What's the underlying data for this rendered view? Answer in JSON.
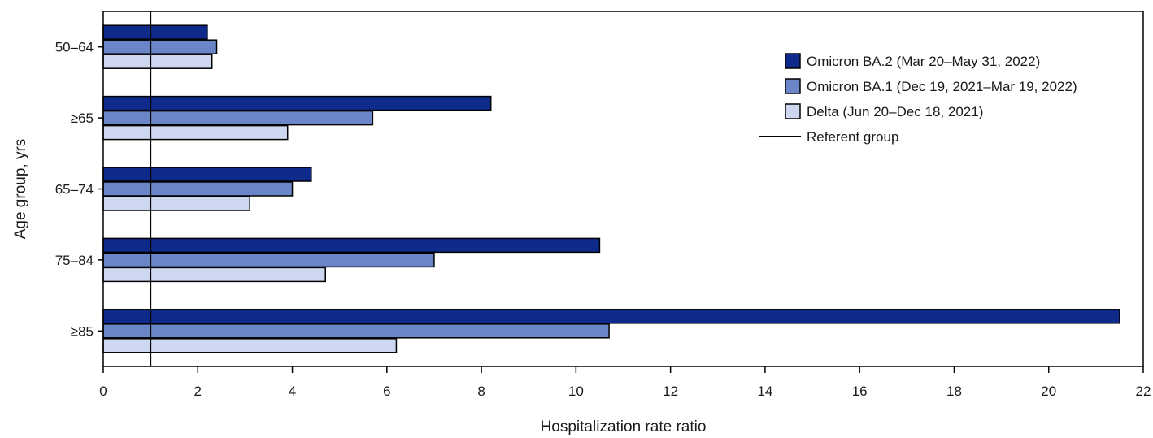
{
  "chart_data": {
    "type": "bar",
    "orientation": "horizontal",
    "categories": [
      "50–64",
      "≥65",
      "65–74",
      "75–84",
      "≥85"
    ],
    "series": [
      {
        "name": "Omicron BA.2 (Mar 20–May 31, 2022)",
        "color": "#0e2b8c",
        "values": [
          2.2,
          8.2,
          4.4,
          10.5,
          21.5
        ]
      },
      {
        "name": "Omicron BA.1 (Dec 19, 2021–Mar 19, 2022)",
        "color": "#6a86c8",
        "values": [
          2.4,
          5.7,
          4.0,
          7.0,
          10.7
        ]
      },
      {
        "name": "Delta (Jun 20–Dec 18, 2021)",
        "color": "#cdd7ef",
        "values": [
          2.3,
          3.9,
          3.1,
          4.7,
          6.2
        ]
      }
    ],
    "referent": {
      "name": "Referent group",
      "value": 1
    },
    "xlabel": "Hospitalization rate ratio",
    "ylabel": "Age group, yrs",
    "xlim": [
      0,
      22
    ],
    "xticks": [
      0,
      2,
      4,
      6,
      8,
      10,
      12,
      14,
      16,
      18,
      20,
      22
    ],
    "legend_position": "top-right",
    "grid": false
  }
}
